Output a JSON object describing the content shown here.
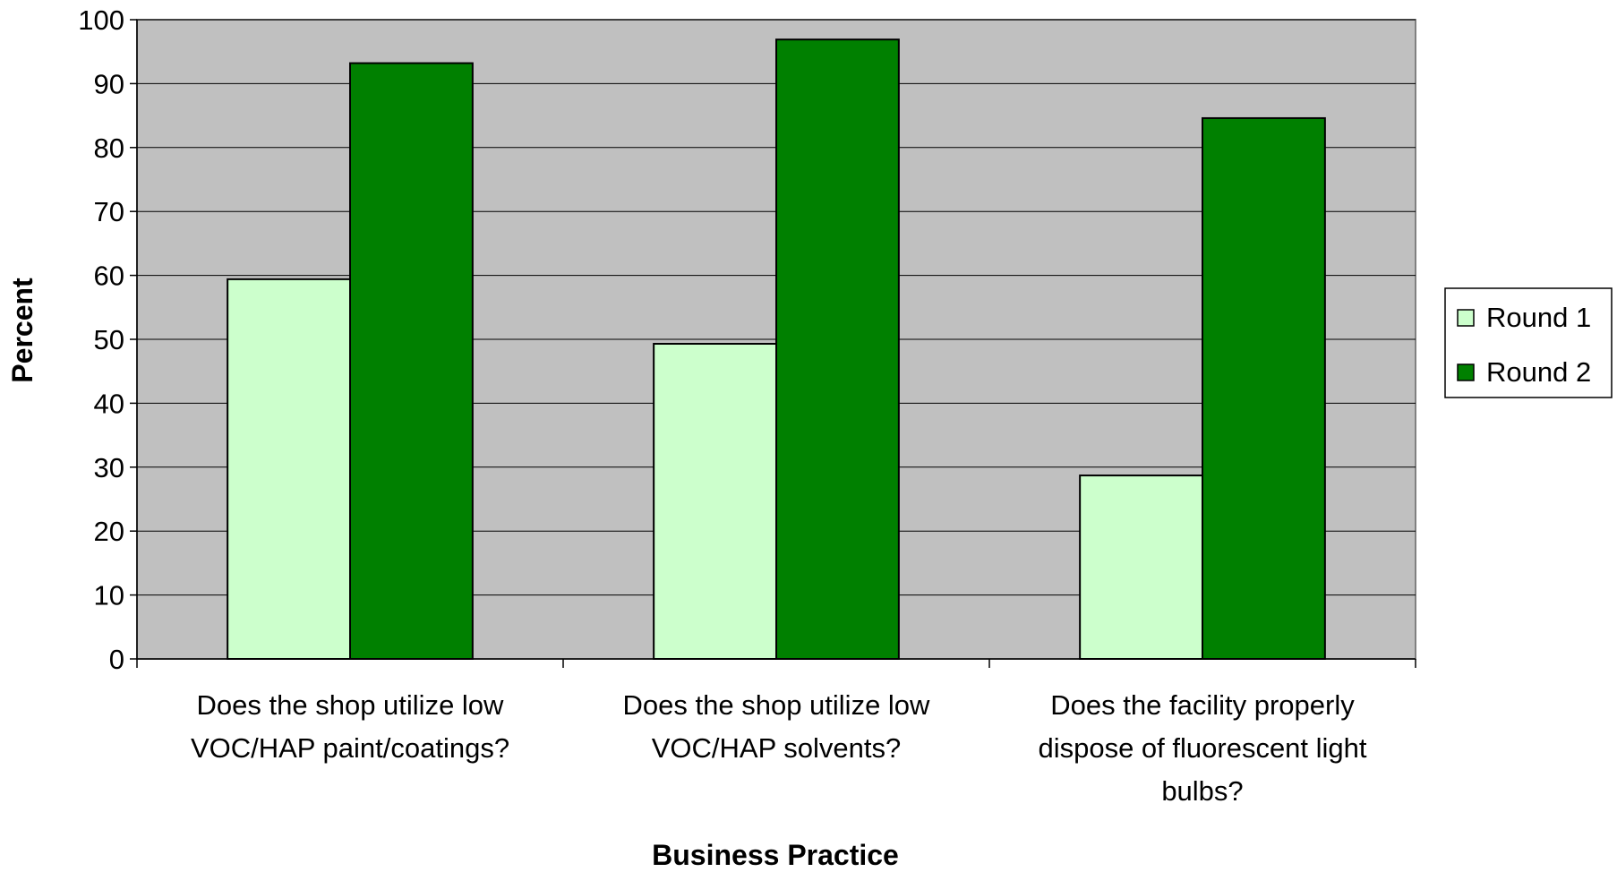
{
  "chart_data": {
    "type": "bar",
    "title": "",
    "xlabel": "Business Practice",
    "ylabel": "Percent",
    "ylim": [
      0,
      100
    ],
    "yticks": [
      0,
      10,
      20,
      30,
      40,
      50,
      60,
      70,
      80,
      90,
      100
    ],
    "grid": true,
    "legend_position": "right",
    "categories": [
      [
        "Does the shop utilize low",
        "VOC/HAP paint/coatings?"
      ],
      [
        "Does the shop utilize low",
        "VOC/HAP solvents?"
      ],
      [
        "Does the facility properly",
        "dispose of fluorescent light",
        "bulbs?"
      ]
    ],
    "series": [
      {
        "name": "Round 1",
        "color": "#ccffcc",
        "values": [
          59.4,
          49.3,
          28.7
        ]
      },
      {
        "name": "Round 2",
        "color": "#008000",
        "values": [
          93.2,
          96.9,
          84.6
        ]
      }
    ],
    "plot_background": "#c0c0c0",
    "gridline_color": "#000000"
  }
}
